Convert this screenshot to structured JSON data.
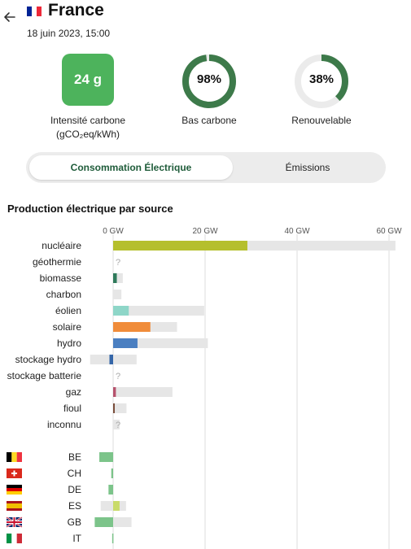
{
  "header": {
    "back_icon": "arrow-left-icon",
    "country_flag": {
      "icon": "flag-fr-icon",
      "colors": [
        "#002395",
        "#ffffff",
        "#ed2939"
      ]
    },
    "country": "France",
    "datetime": "18 juin 2023, 15:00"
  },
  "metrics": {
    "intensity": {
      "value": "24 g",
      "label_line1": "Intensité carbone",
      "label_line2": "(gCO₂eq/kWh)",
      "color": "#4db35c"
    },
    "low_carbon": {
      "value": "98%",
      "fraction": 0.98,
      "label": "Bas carbone",
      "color": "#3d7a4a"
    },
    "renewable": {
      "value": "38%",
      "fraction": 0.38,
      "label": "Renouvelable",
      "color": "#3d7a4a"
    }
  },
  "toggle": {
    "active_label": "Consommation Électrique",
    "inactive_label": "Émissions"
  },
  "chart_title": "Production électrique par source",
  "chart_data": {
    "type": "bar",
    "orientation": "horizontal",
    "unit": "GW",
    "xlim": [
      0,
      62
    ],
    "ticks": [
      {
        "value": 0,
        "label": "0 GW"
      },
      {
        "value": 20,
        "label": "20 GW"
      },
      {
        "value": 40,
        "label": "40 GW"
      },
      {
        "value": 60,
        "label": "60 GW"
      }
    ],
    "sources": [
      {
        "label": "nucléaire",
        "value": 29.2,
        "capacity": 61.4,
        "color": "#b5bf2d"
      },
      {
        "label": "géothermie",
        "value": null,
        "capacity": null,
        "color": "#c7764c",
        "unknown": "?"
      },
      {
        "label": "biomasse",
        "value": 0.8,
        "capacity": 2.1,
        "color": "#2f7a5b"
      },
      {
        "label": "charbon",
        "value": 0,
        "capacity": 1.8,
        "color": "#555555"
      },
      {
        "label": "éolien",
        "value": 3.4,
        "capacity": 19.8,
        "color": "#8ed6c8"
      },
      {
        "label": "solaire",
        "value": 8.1,
        "capacity": 13.9,
        "color": "#f08c3a"
      },
      {
        "label": "hydro",
        "value": 5.3,
        "capacity": 20.6,
        "color": "#4a7fc1"
      },
      {
        "label": "stockage hydro",
        "value": -0.8,
        "capacity": 5.1,
        "capacity_min": -5.0,
        "color": "#3566a8"
      },
      {
        "label": "stockage batterie",
        "value": null,
        "capacity": null,
        "color": "#a66fb3",
        "unknown": "?"
      },
      {
        "label": "gaz",
        "value": 0.6,
        "capacity": 12.9,
        "color": "#b5526d"
      },
      {
        "label": "fioul",
        "value": 0.2,
        "capacity": 2.9,
        "color": "#7a4d3a"
      },
      {
        "label": "inconnu",
        "value": 0,
        "capacity": 1.4,
        "color": "#999999",
        "unknown": "?"
      }
    ],
    "exchanges": [
      {
        "label": "BE",
        "flag": "flag-be-icon",
        "flag_colors": [
          "#000000",
          "#fdda24",
          "#ef3340"
        ],
        "value": -3.0,
        "capacity_min": -3.0,
        "capacity_max": 0
      },
      {
        "label": "CH",
        "flag": "flag-ch-icon",
        "flag_colors": [
          "#da291c",
          "#ffffff"
        ],
        "value": -0.4,
        "capacity_min": -0.4,
        "capacity_max": 0
      },
      {
        "label": "DE",
        "flag": "flag-de-icon",
        "flag_colors": [
          "#000000",
          "#dd0000",
          "#ffce00"
        ],
        "value": -1.0,
        "capacity_min": -1.0,
        "capacity_max": 0
      },
      {
        "label": "ES",
        "flag": "flag-es-icon",
        "flag_colors": [
          "#aa151b",
          "#f1bf00",
          "#aa151b"
        ],
        "value": 1.4,
        "capacity_min": -2.7,
        "capacity_max": 2.8,
        "positive": true
      },
      {
        "label": "GB",
        "flag": "flag-gb-icon",
        "flag_colors": [
          "#012169",
          "#ffffff",
          "#c8102e"
        ],
        "value": -4.0,
        "capacity_min": -4.0,
        "capacity_max": 4.0
      },
      {
        "label": "IT",
        "flag": "flag-it-icon",
        "flag_colors": [
          "#009246",
          "#ffffff",
          "#ce2b37"
        ],
        "value": -0.2,
        "capacity_min": -0.2,
        "capacity_max": 0
      }
    ],
    "colors": {
      "capacity": "#e6e6e6",
      "export": "#7cc48a",
      "import": "#c9db6a",
      "grid": "#dcdcdc"
    }
  }
}
